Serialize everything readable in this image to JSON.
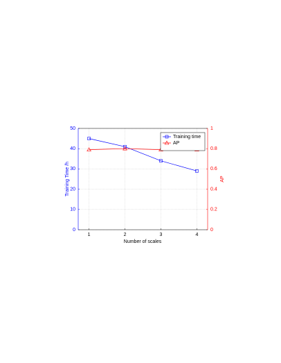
{
  "chart_data": {
    "type": "line",
    "x": [
      1,
      2,
      3,
      4
    ],
    "xlim": [
      0.7,
      4.3
    ],
    "xticks": [
      1,
      2,
      3,
      4
    ],
    "xlabel": "Number of scales",
    "ylabel": "Training Time /h",
    "y2label": "AP",
    "ylim": [
      0,
      50
    ],
    "yticks": [
      0,
      10,
      20,
      30,
      40,
      50
    ],
    "y2lim": [
      0,
      1
    ],
    "y2ticks": [
      0,
      0.2,
      0.4,
      0.6,
      0.8,
      1
    ],
    "grid": true,
    "legend": "northeast",
    "series": [
      {
        "name": "Training time",
        "color": "#0000ff",
        "marker": "square",
        "values": [
          45,
          41,
          34,
          29
        ]
      },
      {
        "name": "AP",
        "color": "#ff0000",
        "marker": "triangle",
        "axis": "y2",
        "values": [
          0.79,
          0.8,
          0.79,
          0.79
        ]
      }
    ]
  }
}
